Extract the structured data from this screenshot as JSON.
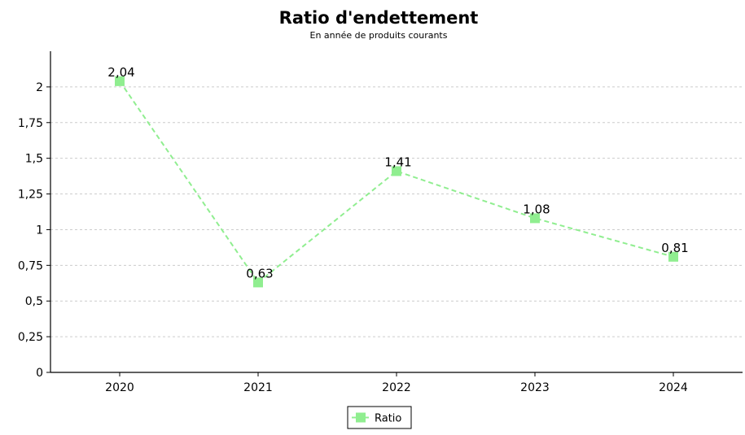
{
  "chart_data": {
    "type": "line",
    "title": "Ratio d'endettement",
    "subtitle": "En année de produits courants",
    "xlabel": "",
    "ylabel": "",
    "categories": [
      "2020",
      "2021",
      "2022",
      "2023",
      "2024"
    ],
    "series": [
      {
        "name": "Ratio",
        "values": [
          2.04,
          0.63,
          1.41,
          1.08,
          0.81
        ],
        "labels": [
          "2,04",
          "0,63",
          "1,41",
          "1,08",
          "0,81"
        ],
        "color": "#90ee90",
        "line_style": "dashed",
        "marker": "square"
      }
    ],
    "ylim": [
      0,
      2.25
    ],
    "yticks": [
      0,
      0.25,
      0.5,
      0.75,
      1,
      1.25,
      1.5,
      1.75,
      2
    ],
    "ytick_labels": [
      "0",
      "0,25",
      "0,5",
      "0,75",
      "1",
      "1,25",
      "1,5",
      "1,75",
      "2"
    ],
    "grid": true,
    "grid_color": "#cccccc",
    "legend_position": "bottom-center"
  }
}
